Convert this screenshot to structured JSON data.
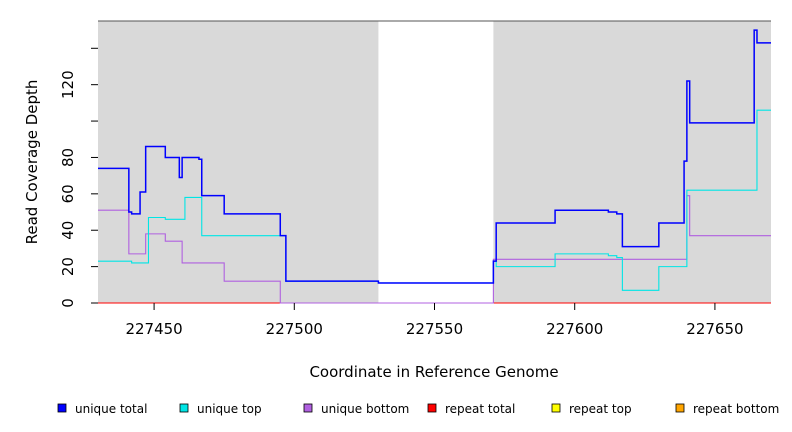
{
  "chart_data": {
    "type": "line",
    "title": "",
    "xlabel": "Coordinate in Reference Genome",
    "ylabel": "Read Coverage Depth",
    "xlim": [
      227430,
      227670
    ],
    "ylim": [
      0,
      155
    ],
    "x_ticks": [
      227450,
      227500,
      227550,
      227600,
      227650
    ],
    "y_ticks": [
      0,
      20,
      40,
      60,
      80,
      120
    ],
    "y_minor_ticks": [
      100,
      140
    ],
    "grid": false,
    "background_color": "#d9d9d9",
    "unshaded_region": [
      227530,
      227571
    ],
    "legend_position": "bottom",
    "series": [
      {
        "name": "unique total",
        "color": "#0000ff",
        "x": [
          227430,
          227441,
          227442,
          227445,
          227447,
          227450,
          227454,
          227459,
          227460,
          227466,
          227467,
          227475,
          227495,
          227497,
          227530,
          227571,
          227572,
          227593,
          227612,
          227615,
          227617,
          227630,
          227639,
          227640,
          227641,
          227664,
          227665,
          227670
        ],
        "y": [
          74,
          50,
          49,
          61,
          86,
          86,
          80,
          69,
          80,
          79,
          59,
          49,
          37,
          12,
          11,
          23,
          44,
          51,
          50,
          49,
          31,
          44,
          78,
          122,
          99,
          150,
          143,
          143
        ]
      },
      {
        "name": "unique top",
        "color": "#00e5e5",
        "x": [
          227430,
          227442,
          227448,
          227454,
          227461,
          227467,
          227475,
          227495,
          227497,
          227530,
          227571,
          227572,
          227593,
          227612,
          227615,
          227617,
          227630,
          227640,
          227664,
          227665,
          227670
        ],
        "y": [
          23,
          22,
          47,
          46,
          58,
          37,
          37,
          37,
          12,
          11,
          23,
          20,
          27,
          26,
          25,
          7,
          20,
          62,
          62,
          106,
          106
        ]
      },
      {
        "name": "unique bottom",
        "color": "#b060e0",
        "x": [
          227430,
          227441,
          227447,
          227454,
          227460,
          227475,
          227495,
          227530,
          227571,
          227572,
          227593,
          227640,
          227641,
          227670
        ],
        "y": [
          51,
          27,
          38,
          34,
          22,
          12,
          0,
          0,
          24,
          24,
          24,
          59,
          37,
          37
        ]
      },
      {
        "name": "repeat total",
        "color": "#ff0000",
        "x": [
          227430,
          227670
        ],
        "y": [
          0,
          0
        ]
      },
      {
        "name": "repeat top",
        "color": "#ffff00",
        "x": [
          227430,
          227670
        ],
        "y": [
          0,
          0
        ]
      },
      {
        "name": "repeat bottom",
        "color": "#ffa500",
        "x": [
          227430,
          227670
        ],
        "y": [
          0,
          0
        ]
      }
    ]
  }
}
